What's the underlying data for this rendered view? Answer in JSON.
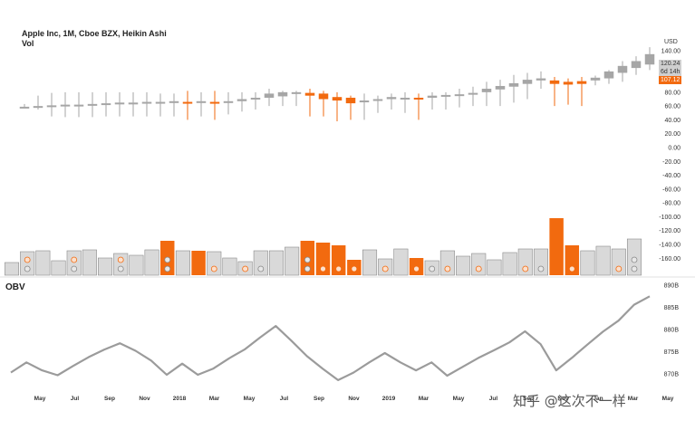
{
  "header": {
    "title": "Apple Inc, 1M, Cboe BZX, Heikin Ashi",
    "subtitle": "Vol"
  },
  "currency": "USD",
  "price_tags": {
    "last": "120.24",
    "countdown": "6d 14h",
    "other": "107.12"
  },
  "obv_title": "OBV",
  "watermark": "知乎 @这次不一样",
  "colors": {
    "up": "#a6a6a6",
    "down": "#f26a0f",
    "vol_up": "#d9d9d9",
    "vol_down": "#f26a0f",
    "obv_line": "#9b9b9b",
    "badge_gray": "#888888",
    "badge_orange": "#f26a0f"
  },
  "chart_data": [
    {
      "type": "candlestick",
      "title": "Apple Inc, 1M, Cboe BZX, Heikin Ashi",
      "y_ticks": [
        140,
        120,
        100,
        80,
        60,
        40,
        20,
        0,
        -20,
        -40,
        -60,
        -80,
        -100,
        -120,
        -140,
        -160
      ],
      "y_tick_labels": [
        "140.00",
        "120.00",
        "100.00",
        "80.00",
        "60.00",
        "40.00",
        "20.00",
        "0.00",
        "-20.00",
        "-40.00",
        "-60.00",
        "-80.00",
        "-100.00",
        "-120.00",
        "-140.00",
        "-160.00"
      ],
      "x_tick_labels": [
        "May",
        "Jul",
        "Sep",
        "Nov",
        "2018",
        "Mar",
        "May",
        "Jul",
        "Sep",
        "Nov",
        "2019",
        "Mar",
        "May",
        "Jul",
        "Sep",
        "Nov",
        "Jan",
        "Mar",
        "May"
      ],
      "candles": [
        {
          "o": 58,
          "c": 59,
          "h": 63,
          "l": 57,
          "d": "u"
        },
        {
          "o": 59,
          "c": 60,
          "h": 75,
          "l": 55,
          "d": "u"
        },
        {
          "o": 60,
          "c": 61,
          "h": 79,
          "l": 45,
          "d": "u"
        },
        {
          "o": 61,
          "c": 62,
          "h": 80,
          "l": 44,
          "d": "u"
        },
        {
          "o": 61,
          "c": 62,
          "h": 80,
          "l": 44,
          "d": "u"
        },
        {
          "o": 62,
          "c": 63,
          "h": 80,
          "l": 44,
          "d": "u"
        },
        {
          "o": 63,
          "c": 64,
          "h": 80,
          "l": 45,
          "d": "u"
        },
        {
          "o": 64,
          "c": 65,
          "h": 80,
          "l": 45,
          "d": "u"
        },
        {
          "o": 64,
          "c": 65,
          "h": 80,
          "l": 45,
          "d": "u"
        },
        {
          "o": 65,
          "c": 66,
          "h": 80,
          "l": 45,
          "d": "u"
        },
        {
          "o": 65,
          "c": 66,
          "h": 78,
          "l": 45,
          "d": "u"
        },
        {
          "o": 66,
          "c": 67,
          "h": 78,
          "l": 45,
          "d": "u"
        },
        {
          "o": 66,
          "c": 65,
          "h": 82,
          "l": 40,
          "d": "d"
        },
        {
          "o": 66,
          "c": 67,
          "h": 80,
          "l": 45,
          "d": "u"
        },
        {
          "o": 66,
          "c": 65,
          "h": 82,
          "l": 40,
          "d": "d"
        },
        {
          "o": 66,
          "c": 67,
          "h": 80,
          "l": 48,
          "d": "u"
        },
        {
          "o": 67,
          "c": 70,
          "h": 80,
          "l": 52,
          "d": "u"
        },
        {
          "o": 70,
          "c": 72,
          "h": 80,
          "l": 55,
          "d": "u"
        },
        {
          "o": 72,
          "c": 78,
          "h": 85,
          "l": 60,
          "d": "u"
        },
        {
          "o": 74,
          "c": 80,
          "h": 82,
          "l": 60,
          "d": "u"
        },
        {
          "o": 78,
          "c": 80,
          "h": 82,
          "l": 60,
          "d": "u"
        },
        {
          "o": 79,
          "c": 75,
          "h": 85,
          "l": 45,
          "d": "d"
        },
        {
          "o": 78,
          "c": 70,
          "h": 82,
          "l": 45,
          "d": "d"
        },
        {
          "o": 73,
          "c": 68,
          "h": 80,
          "l": 38,
          "d": "d"
        },
        {
          "o": 72,
          "c": 64,
          "h": 75,
          "l": 40,
          "d": "d"
        },
        {
          "o": 66,
          "c": 68,
          "h": 78,
          "l": 40,
          "d": "u"
        },
        {
          "o": 68,
          "c": 70,
          "h": 75,
          "l": 50,
          "d": "u"
        },
        {
          "o": 70,
          "c": 73,
          "h": 78,
          "l": 55,
          "d": "u"
        },
        {
          "o": 71,
          "c": 72,
          "h": 80,
          "l": 50,
          "d": "u"
        },
        {
          "o": 72,
          "c": 70,
          "h": 78,
          "l": 40,
          "d": "d"
        },
        {
          "o": 72,
          "c": 75,
          "h": 80,
          "l": 55,
          "d": "u"
        },
        {
          "o": 74,
          "c": 76,
          "h": 80,
          "l": 55,
          "d": "u"
        },
        {
          "o": 75,
          "c": 77,
          "h": 85,
          "l": 58,
          "d": "u"
        },
        {
          "o": 77,
          "c": 79,
          "h": 88,
          "l": 60,
          "d": "u"
        },
        {
          "o": 80,
          "c": 85,
          "h": 95,
          "l": 60,
          "d": "u"
        },
        {
          "o": 84,
          "c": 89,
          "h": 98,
          "l": 60,
          "d": "u"
        },
        {
          "o": 88,
          "c": 93,
          "h": 105,
          "l": 65,
          "d": "u"
        },
        {
          "o": 92,
          "c": 98,
          "h": 108,
          "l": 70,
          "d": "u"
        },
        {
          "o": 97,
          "c": 100,
          "h": 110,
          "l": 85,
          "d": "u"
        },
        {
          "o": 97,
          "c": 92,
          "h": 102,
          "l": 60,
          "d": "d"
        },
        {
          "o": 95,
          "c": 91,
          "h": 100,
          "l": 62,
          "d": "d"
        },
        {
          "o": 96,
          "c": 92,
          "h": 102,
          "l": 60,
          "d": "d"
        },
        {
          "o": 97,
          "c": 101,
          "h": 104,
          "l": 90,
          "d": "u"
        },
        {
          "o": 100,
          "c": 110,
          "h": 112,
          "l": 92,
          "d": "u"
        },
        {
          "o": 108,
          "c": 118,
          "h": 125,
          "l": 95,
          "d": "u"
        },
        {
          "o": 115,
          "c": 125,
          "h": 132,
          "l": 105,
          "d": "u"
        },
        {
          "o": 120,
          "c": 135,
          "h": 145,
          "l": 112,
          "d": "u"
        }
      ],
      "volume": [
        {
          "v": 14,
          "d": "u",
          "b": ""
        },
        {
          "v": 26,
          "d": "u",
          "b": "go"
        },
        {
          "v": 27,
          "d": "u",
          "b": ""
        },
        {
          "v": 16,
          "d": "u",
          "b": ""
        },
        {
          "v": 27,
          "d": "u",
          "b": "go"
        },
        {
          "v": 28,
          "d": "u",
          "b": ""
        },
        {
          "v": 19,
          "d": "u",
          "b": ""
        },
        {
          "v": 24,
          "d": "u",
          "b": "go"
        },
        {
          "v": 22,
          "d": "u",
          "b": ""
        },
        {
          "v": 28,
          "d": "u",
          "b": ""
        },
        {
          "v": 38,
          "d": "d",
          "b": "gg"
        },
        {
          "v": 27,
          "d": "u",
          "b": ""
        },
        {
          "v": 27,
          "d": "d",
          "b": ""
        },
        {
          "v": 26,
          "d": "u",
          "b": "o"
        },
        {
          "v": 19,
          "d": "u",
          "b": ""
        },
        {
          "v": 15,
          "d": "u",
          "b": "o"
        },
        {
          "v": 27,
          "d": "u",
          "b": "g"
        },
        {
          "v": 27,
          "d": "u",
          "b": ""
        },
        {
          "v": 31,
          "d": "u",
          "b": ""
        },
        {
          "v": 38,
          "d": "d",
          "b": "gg"
        },
        {
          "v": 36,
          "d": "d",
          "b": "o"
        },
        {
          "v": 33,
          "d": "d",
          "b": "o"
        },
        {
          "v": 17,
          "d": "d",
          "b": "o"
        },
        {
          "v": 28,
          "d": "u",
          "b": ""
        },
        {
          "v": 18,
          "d": "u",
          "b": "o"
        },
        {
          "v": 29,
          "d": "u",
          "b": ""
        },
        {
          "v": 19,
          "d": "d",
          "b": "o"
        },
        {
          "v": 16,
          "d": "u",
          "b": "g"
        },
        {
          "v": 27,
          "d": "u",
          "b": "o"
        },
        {
          "v": 21,
          "d": "u",
          "b": ""
        },
        {
          "v": 24,
          "d": "u",
          "b": "o"
        },
        {
          "v": 17,
          "d": "u",
          "b": ""
        },
        {
          "v": 25,
          "d": "u",
          "b": ""
        },
        {
          "v": 29,
          "d": "u",
          "b": "o"
        },
        {
          "v": 29,
          "d": "u",
          "b": "g"
        },
        {
          "v": 63,
          "d": "d",
          "b": ""
        },
        {
          "v": 33,
          "d": "d",
          "b": "o"
        },
        {
          "v": 27,
          "d": "u",
          "b": ""
        },
        {
          "v": 32,
          "d": "u",
          "b": ""
        },
        {
          "v": 29,
          "d": "u",
          "b": "o"
        },
        {
          "v": 40,
          "d": "u",
          "b": "gg"
        }
      ]
    },
    {
      "type": "line",
      "title": "OBV",
      "y_ticks": [
        870,
        875,
        880,
        885,
        890
      ],
      "y_tick_labels": [
        "870B",
        "875B",
        "880B",
        "885B",
        "890B"
      ],
      "y_range": [
        868,
        891
      ],
      "values": [
        870.3,
        872.6,
        870.8,
        869.7,
        871.8,
        873.8,
        875.5,
        876.9,
        875.2,
        873.0,
        869.8,
        872.3,
        869.8,
        871.2,
        873.5,
        875.5,
        878.2,
        880.8,
        877.5,
        874.0,
        871.2,
        868.6,
        870.3,
        872.6,
        874.7,
        872.6,
        870.8,
        872.6,
        869.6,
        871.6,
        873.6,
        875.3,
        877.1,
        879.6,
        876.7,
        870.8,
        873.6,
        876.6,
        879.5,
        882.0,
        885.6,
        887.5
      ]
    }
  ]
}
